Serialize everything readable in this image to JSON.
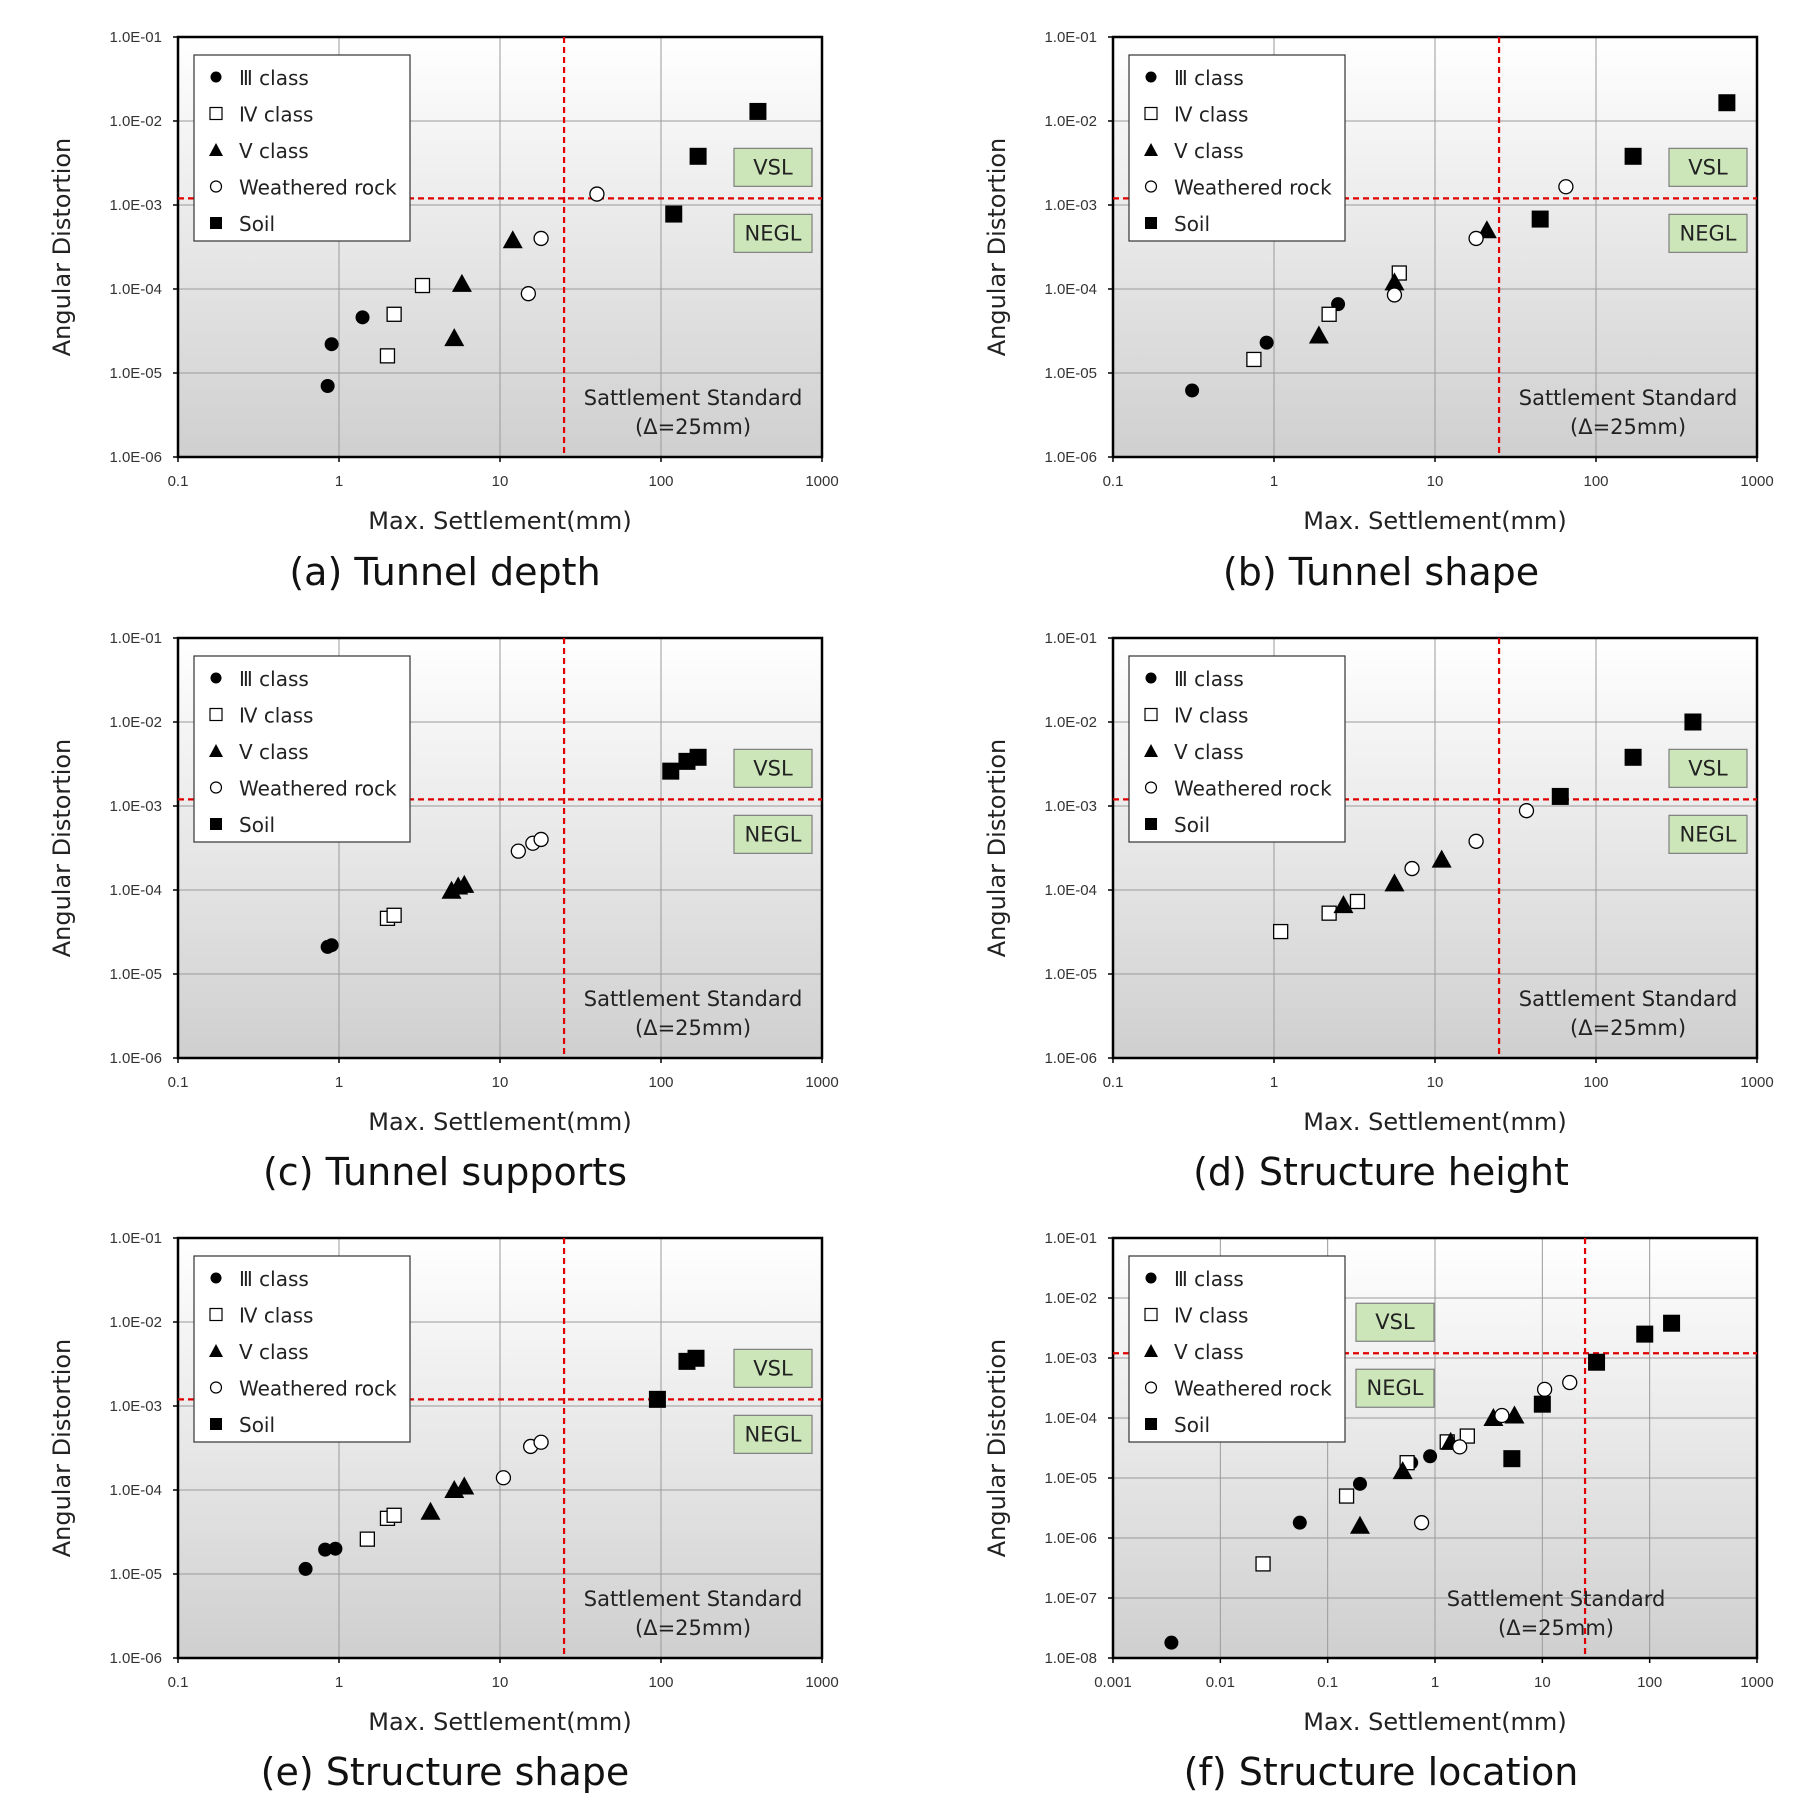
{
  "chart_data": [
    {
      "type": "scatter",
      "caption": "(a) Tunnel depth",
      "xlabel": "Max. Settlement(mm)",
      "ylabel": "Angular Distortion",
      "x_scale": "log",
      "y_scale": "log",
      "xlim": [
        0.1,
        1000
      ],
      "ylim": [
        1e-06,
        0.1
      ],
      "x_ticks": [
        "0.1",
        "1",
        "10",
        "100",
        "1000"
      ],
      "y_ticks": [
        "1.0E-06",
        "1.0E-05",
        "1.0E-04",
        "1.0E-03",
        "1.0E-02",
        "1.0E-01"
      ],
      "standard_x": 25,
      "threshold_y": 0.0012,
      "standard_label": [
        "Sattlement Standard",
        "(Δ=25mm)"
      ],
      "zones": {
        "upper": "VSL",
        "lower": "NEGL",
        "position": "right"
      },
      "series": [
        {
          "name": "Ⅲ class",
          "marker": "circle-filled",
          "points": [
            [
              0.85,
              7e-06
            ],
            [
              0.9,
              2.2e-05
            ],
            [
              1.4,
              4.6e-05
            ]
          ]
        },
        {
          "name": "Ⅳ class",
          "marker": "square-open",
          "points": [
            [
              2.0,
              1.6e-05
            ],
            [
              2.2,
              5e-05
            ],
            [
              3.3,
              0.00011
            ]
          ]
        },
        {
          "name": "Ⅴ class",
          "marker": "triangle-filled",
          "points": [
            [
              5.2,
              2.6e-05
            ],
            [
              5.8,
              0.000115
            ],
            [
              12,
              0.00038
            ]
          ]
        },
        {
          "name": "Weathered rock",
          "marker": "circle-open",
          "points": [
            [
              15,
              8.8e-05
            ],
            [
              18,
              0.0004
            ],
            [
              40,
              0.00135
            ]
          ]
        },
        {
          "name": "Soil",
          "marker": "square-filled",
          "points": [
            [
              120,
              0.00078
            ],
            [
              170,
              0.0038
            ],
            [
              400,
              0.013
            ]
          ]
        }
      ]
    },
    {
      "type": "scatter",
      "caption": "(b) Tunnel shape",
      "xlabel": "Max. Settlement(mm)",
      "ylabel": "Angular Distortion",
      "x_scale": "log",
      "y_scale": "log",
      "xlim": [
        0.1,
        1000
      ],
      "ylim": [
        1e-06,
        0.1
      ],
      "x_ticks": [
        "0.1",
        "1",
        "10",
        "100",
        "1000"
      ],
      "y_ticks": [
        "1.0E-06",
        "1.0E-05",
        "1.0E-04",
        "1.0E-03",
        "1.0E-02",
        "1.0E-01"
      ],
      "standard_x": 25,
      "threshold_y": 0.0012,
      "standard_label": [
        "Sattlement Standard",
        "(Δ=25mm)"
      ],
      "zones": {
        "upper": "VSL",
        "lower": "NEGL",
        "position": "right"
      },
      "series": [
        {
          "name": "Ⅲ class",
          "marker": "circle-filled",
          "points": [
            [
              0.31,
              6.2e-06
            ],
            [
              0.9,
              2.3e-05
            ],
            [
              2.5,
              6.6e-05
            ]
          ]
        },
        {
          "name": "Ⅳ class",
          "marker": "square-open",
          "points": [
            [
              0.75,
              1.45e-05
            ],
            [
              2.2,
              5e-05
            ],
            [
              6.0,
              0.000155
            ]
          ]
        },
        {
          "name": "Ⅴ class",
          "marker": "triangle-filled",
          "points": [
            [
              1.9,
              2.8e-05
            ],
            [
              5.6,
              0.00012
            ],
            [
              21,
              0.0005
            ]
          ]
        },
        {
          "name": "Weathered rock",
          "marker": "circle-open",
          "points": [
            [
              5.6,
              8.5e-05
            ],
            [
              18,
              0.0004
            ],
            [
              65,
              0.00165
            ]
          ]
        },
        {
          "name": "Soil",
          "marker": "square-filled",
          "points": [
            [
              45,
              0.00068
            ],
            [
              170,
              0.0038
            ],
            [
              650,
              0.0165
            ]
          ]
        }
      ]
    },
    {
      "type": "scatter",
      "caption": "(c) Tunnel supports",
      "xlabel": "Max. Settlement(mm)",
      "ylabel": "Angular Distortion",
      "x_scale": "log",
      "y_scale": "log",
      "xlim": [
        0.1,
        1000
      ],
      "ylim": [
        1e-06,
        0.1
      ],
      "x_ticks": [
        "0.1",
        "1",
        "10",
        "100",
        "1000"
      ],
      "y_ticks": [
        "1.0E-06",
        "1.0E-05",
        "1.0E-04",
        "1.0E-03",
        "1.0E-02",
        "1.0E-01"
      ],
      "standard_x": 25,
      "threshold_y": 0.0012,
      "standard_label": [
        "Sattlement Standard",
        "(Δ=25mm)"
      ],
      "zones": {
        "upper": "VSL",
        "lower": "NEGL",
        "position": "right"
      },
      "series": [
        {
          "name": "Ⅲ class",
          "marker": "circle-filled",
          "points": [
            [
              0.85,
              2.1e-05
            ],
            [
              0.9,
              2.2e-05
            ]
          ]
        },
        {
          "name": "Ⅳ class",
          "marker": "square-open",
          "points": [
            [
              2.0,
              4.6e-05
            ],
            [
              2.2,
              5e-05
            ]
          ]
        },
        {
          "name": "Ⅴ class",
          "marker": "triangle-filled",
          "points": [
            [
              5.0,
              9.8e-05
            ],
            [
              5.5,
              0.00011
            ],
            [
              6.0,
              0.000115
            ]
          ]
        },
        {
          "name": "Weathered rock",
          "marker": "circle-open",
          "points": [
            [
              13,
              0.00029
            ],
            [
              16,
              0.00036
            ],
            [
              18,
              0.0004
            ]
          ]
        },
        {
          "name": "Soil",
          "marker": "square-filled",
          "points": [
            [
              115,
              0.0026
            ],
            [
              145,
              0.0034
            ],
            [
              170,
              0.0038
            ]
          ]
        }
      ]
    },
    {
      "type": "scatter",
      "caption": "(d) Structure height",
      "xlabel": "Max. Settlement(mm)",
      "ylabel": "Angular Distortion",
      "x_scale": "log",
      "y_scale": "log",
      "xlim": [
        0.1,
        1000
      ],
      "ylim": [
        1e-06,
        0.1
      ],
      "x_ticks": [
        "0.1",
        "1",
        "10",
        "100",
        "1000"
      ],
      "y_ticks": [
        "1.0E-06",
        "1.0E-05",
        "1.0E-04",
        "1.0E-03",
        "1.0E-02",
        "1.0E-01"
      ],
      "standard_x": 25,
      "threshold_y": 0.0012,
      "standard_label": [
        "Sattlement Standard",
        "(Δ=25mm)"
      ],
      "zones": {
        "upper": "VSL",
        "lower": "NEGL",
        "position": "right"
      },
      "series": [
        {
          "name": "Ⅲ class",
          "marker": "circle-filled",
          "points": []
        },
        {
          "name": "Ⅳ class",
          "marker": "square-open",
          "points": [
            [
              1.1,
              3.2e-05
            ],
            [
              2.2,
              5.3e-05
            ],
            [
              3.3,
              7.3e-05
            ]
          ]
        },
        {
          "name": "Ⅴ class",
          "marker": "triangle-filled",
          "points": [
            [
              2.7,
              6.6e-05
            ],
            [
              5.6,
              0.00012
            ],
            [
              11,
              0.00023
            ]
          ]
        },
        {
          "name": "Weathered rock",
          "marker": "circle-open",
          "points": [
            [
              7.2,
              0.00018
            ],
            [
              18,
              0.00038
            ],
            [
              37,
              0.00088
            ]
          ]
        },
        {
          "name": "Soil",
          "marker": "square-filled",
          "points": [
            [
              60,
              0.0013
            ],
            [
              170,
              0.0038
            ],
            [
              400,
              0.01
            ]
          ]
        }
      ]
    },
    {
      "type": "scatter",
      "caption": "(e) Structure shape",
      "xlabel": "Max. Settlement(mm)",
      "ylabel": "Angular Distortion",
      "x_scale": "log",
      "y_scale": "log",
      "xlim": [
        0.1,
        1000
      ],
      "ylim": [
        1e-06,
        0.1
      ],
      "x_ticks": [
        "0.1",
        "1",
        "10",
        "100",
        "1000"
      ],
      "y_ticks": [
        "1.0E-06",
        "1.0E-05",
        "1.0E-04",
        "1.0E-03",
        "1.0E-02",
        "1.0E-01"
      ],
      "standard_x": 25,
      "threshold_y": 0.0012,
      "standard_label": [
        "Sattlement Standard",
        "(Δ=25mm)"
      ],
      "zones": {
        "upper": "VSL",
        "lower": "NEGL",
        "position": "right"
      },
      "series": [
        {
          "name": "Ⅲ class",
          "marker": "circle-filled",
          "points": [
            [
              0.62,
              1.15e-05
            ],
            [
              0.82,
              1.95e-05
            ],
            [
              0.95,
              2e-05
            ]
          ]
        },
        {
          "name": "Ⅳ class",
          "marker": "square-open",
          "points": [
            [
              1.5,
              2.6e-05
            ],
            [
              2.0,
              4.6e-05
            ],
            [
              2.2,
              5e-05
            ]
          ]
        },
        {
          "name": "Ⅴ class",
          "marker": "triangle-filled",
          "points": [
            [
              3.7,
              5.5e-05
            ],
            [
              5.2,
              0.0001
            ],
            [
              6.0,
              0.00011
            ]
          ]
        },
        {
          "name": "Weathered rock",
          "marker": "circle-open",
          "points": [
            [
              10.5,
              0.00014
            ],
            [
              15.5,
              0.00033
            ],
            [
              18,
              0.00037
            ]
          ]
        },
        {
          "name": "Soil",
          "marker": "square-filled",
          "points": [
            [
              95,
              0.0012
            ],
            [
              145,
              0.0034
            ],
            [
              165,
              0.0037
            ]
          ]
        }
      ]
    },
    {
      "type": "scatter",
      "caption": "(f) Structure location",
      "xlabel": "Max. Settlement(mm)",
      "ylabel": "Angular Distortion",
      "x_scale": "log",
      "y_scale": "log",
      "xlim": [
        0.001,
        1000
      ],
      "ylim": [
        1e-08,
        0.1
      ],
      "x_ticks": [
        "0.001",
        "0.01",
        "0.1",
        "1",
        "10",
        "100",
        "1000"
      ],
      "y_ticks": [
        "1.0E-08",
        "1.0E-07",
        "1.0E-06",
        "1.0E-05",
        "1.0E-04",
        "1.0E-03",
        "1.0E-02",
        "1.0E-01"
      ],
      "standard_x": 25,
      "threshold_y": 0.0012,
      "standard_label": [
        "Sattlement Standard",
        "(Δ=25mm)"
      ],
      "zones": {
        "upper": "VSL",
        "lower": "NEGL",
        "position": "left"
      },
      "series": [
        {
          "name": "Ⅲ class",
          "marker": "circle-filled",
          "points": [
            [
              0.0035,
              1.8e-08
            ],
            [
              0.055,
              1.8e-06
            ],
            [
              0.2,
              8e-06
            ],
            [
              0.6,
              1.8e-05
            ],
            [
              0.9,
              2.3e-05
            ]
          ]
        },
        {
          "name": "Ⅳ class",
          "marker": "square-open",
          "points": [
            [
              0.025,
              3.7e-07
            ],
            [
              0.15,
              5e-06
            ],
            [
              0.55,
              1.8e-05
            ],
            [
              1.3,
              4e-05
            ],
            [
              2.0,
              5e-05
            ]
          ]
        },
        {
          "name": "Ⅴ class",
          "marker": "triangle-filled",
          "points": [
            [
              0.2,
              1.6e-06
            ],
            [
              0.5,
              1.3e-05
            ],
            [
              1.4,
              4e-05
            ],
            [
              3.5,
              0.0001
            ],
            [
              5.5,
              0.00011
            ]
          ]
        },
        {
          "name": "Weathered rock",
          "marker": "circle-open",
          "points": [
            [
              0.75,
              1.8e-06
            ],
            [
              1.7,
              3.3e-05
            ],
            [
              4.2,
              0.00011
            ],
            [
              10.5,
              0.0003
            ],
            [
              18,
              0.00039
            ]
          ]
        },
        {
          "name": "Soil",
          "marker": "square-filled",
          "points": [
            [
              5.2,
              2.1e-05
            ],
            [
              10,
              0.00017
            ],
            [
              32,
              0.00085
            ],
            [
              90,
              0.0025
            ],
            [
              160,
              0.0038
            ]
          ]
        }
      ]
    }
  ]
}
